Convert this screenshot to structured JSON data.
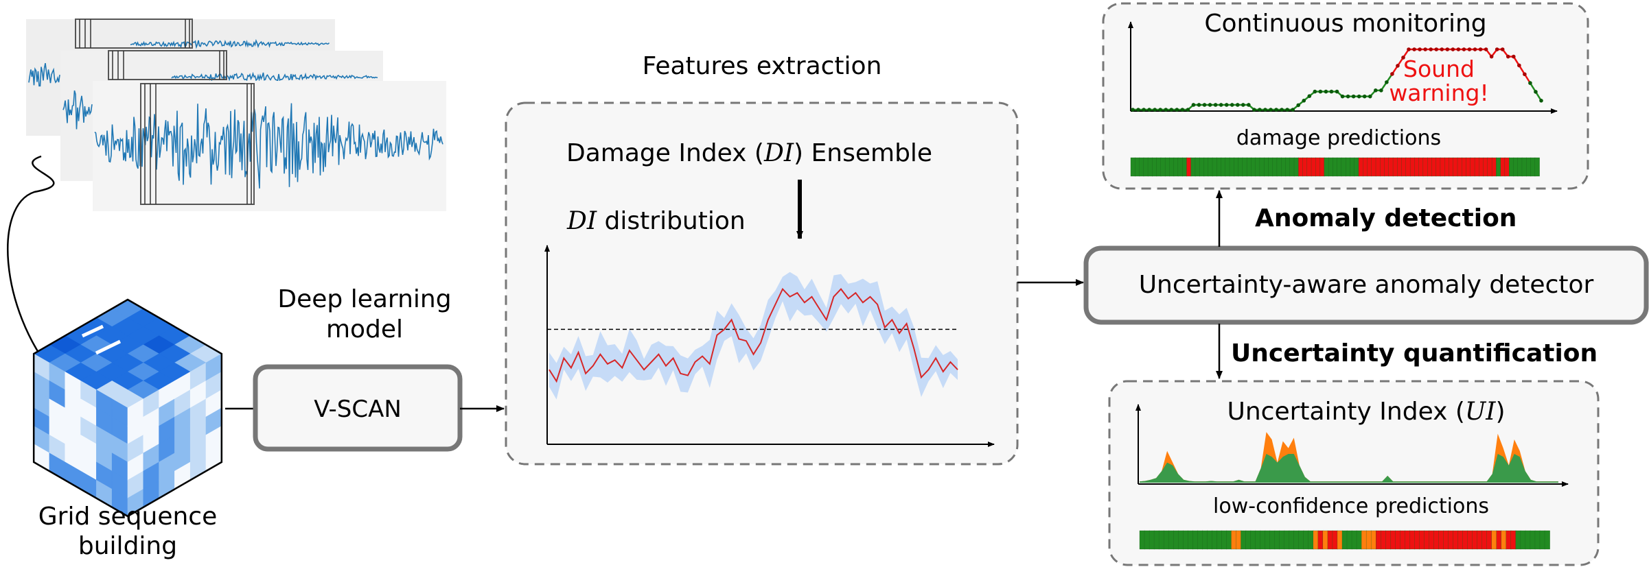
{
  "labels": {
    "features_extraction": "Features extraction",
    "deep_learning_line1": "Deep learning",
    "deep_learning_line2": "model",
    "vscan": "V-SCAN",
    "grid_line1": "Grid sequence",
    "grid_line2": "building",
    "ensemble_pre": "Damage Index (",
    "ensemble_di": "DI",
    "ensemble_post": ") Ensemble",
    "dist_di": "DI",
    "dist_post": " distribution",
    "anomaly_detection": "Anomaly detection",
    "detector": "Uncertainty-aware anomaly detector",
    "uncertainty_quantification": "Uncertainty quantification",
    "continuous_monitoring": "Continuous monitoring",
    "sound_warning_line1": "Sound",
    "sound_warning_line2": "warning!",
    "damage_predictions": "damage predictions",
    "ui_pre": "Uncertainty Index (",
    "ui_ui": "UI",
    "ui_post": ")",
    "low_confidence": "low-confidence predictions"
  },
  "colors": {
    "signal": "#1f77b4",
    "di_line": "#d62728",
    "di_band": "#c6dbf7",
    "green": "#228b22",
    "red": "#ee1111",
    "orange": "#ff7f0e",
    "box_border": "#777777",
    "box_fill": "#f7f7f7"
  },
  "chart_data": {
    "di_distribution": {
      "type": "line",
      "values": [
        0.36,
        0.3,
        0.42,
        0.37,
        0.45,
        0.34,
        0.38,
        0.44,
        0.39,
        0.41,
        0.37,
        0.46,
        0.41,
        0.36,
        0.4,
        0.44,
        0.38,
        0.42,
        0.34,
        0.33,
        0.4,
        0.43,
        0.39,
        0.54,
        0.57,
        0.62,
        0.52,
        0.51,
        0.44,
        0.5,
        0.62,
        0.7,
        0.78,
        0.74,
        0.76,
        0.71,
        0.74,
        0.68,
        0.62,
        0.74,
        0.78,
        0.73,
        0.76,
        0.71,
        0.74,
        0.7,
        0.58,
        0.62,
        0.55,
        0.6,
        0.47,
        0.32,
        0.36,
        0.42,
        0.35,
        0.4,
        0.36
      ],
      "threshold": 0.57
    },
    "continuous_monitoring": {
      "type": "line",
      "state": [
        "green",
        "green",
        "green",
        "green",
        "green",
        "green",
        "green",
        "green",
        "green",
        "green",
        "green",
        "green",
        "green",
        "green",
        "green",
        "green",
        "green",
        "green",
        "green",
        "green",
        "green",
        "green",
        "green",
        "green",
        "green",
        "green",
        "green",
        "green",
        "green",
        "green",
        "green",
        "green",
        "green",
        "green",
        "green",
        "green",
        "green",
        "green",
        "green",
        "green",
        "green",
        "red",
        "green",
        "green",
        "green",
        "green",
        "green",
        "green",
        "green",
        "green",
        "green",
        "green",
        "green",
        "green",
        "red",
        "red",
        "red",
        "red",
        "red",
        "red",
        "red",
        "red",
        "red",
        "red",
        "red",
        "red",
        "red",
        "red",
        "red",
        "red",
        "red",
        "red",
        "red",
        "red",
        "red",
        "red",
        "red",
        "red",
        "red",
        "red",
        "red",
        "red",
        "red",
        "red",
        "red",
        "red",
        "red",
        "red",
        "red",
        "red",
        "red",
        "red",
        "red",
        "red",
        "red",
        "red",
        "red",
        "red",
        "red",
        "red",
        "red",
        "red",
        "red",
        "red"
      ],
      "levels": [
        0,
        1,
        2,
        3,
        4
      ]
    },
    "damage_predictions": {
      "type": "heatmap",
      "cells": [
        "g",
        "g",
        "g",
        "g",
        "g",
        "g",
        "g",
        "g",
        "g",
        "g",
        "g",
        "g",
        "g",
        "r",
        "g",
        "g",
        "g",
        "g",
        "g",
        "g",
        "g",
        "g",
        "g",
        "g",
        "g",
        "g",
        "g",
        "g",
        "g",
        "g",
        "g",
        "g",
        "g",
        "g",
        "g",
        "g",
        "g",
        "g",
        "g",
        "r",
        "r",
        "r",
        "r",
        "r",
        "r",
        "g",
        "g",
        "g",
        "g",
        "g",
        "g",
        "g",
        "g",
        "r",
        "r",
        "r",
        "r",
        "r",
        "r",
        "r",
        "r",
        "r",
        "r",
        "r",
        "r",
        "r",
        "r",
        "r",
        "r",
        "r",
        "r",
        "r",
        "r",
        "r",
        "r",
        "r",
        "r",
        "r",
        "r",
        "r",
        "r",
        "r",
        "r",
        "r",
        "r",
        "g",
        "r",
        "r",
        "g",
        "g",
        "g",
        "g",
        "g",
        "g",
        "g"
      ]
    },
    "uncertainty_index": {
      "type": "area",
      "total": [
        0.02,
        0.03,
        0.05,
        0.08,
        0.2,
        0.55,
        0.35,
        0.15,
        0.05,
        0.03,
        0.02,
        0.02,
        0.02,
        0.03,
        0.02,
        0.02,
        0.02,
        0.02,
        0.05,
        0.02,
        0.02,
        0.02,
        0.25,
        0.88,
        0.75,
        0.35,
        0.72,
        0.6,
        0.78,
        0.3,
        0.1,
        0.02,
        0.02,
        0.02,
        0.02,
        0.02,
        0.02,
        0.02,
        0.02,
        0.02,
        0.02,
        0.02,
        0.02,
        0.02,
        0.02,
        0.12,
        0.02,
        0.02,
        0.02,
        0.02,
        0.02,
        0.02,
        0.02,
        0.02,
        0.02,
        0.02,
        0.02,
        0.02,
        0.02,
        0.02,
        0.02,
        0.02,
        0.02,
        0.02,
        0.15,
        0.85,
        0.6,
        0.3,
        0.75,
        0.55,
        0.2,
        0.05,
        0.02,
        0.02,
        0.02,
        0.02,
        0.02
      ],
      "green_part": [
        0.02,
        0.03,
        0.05,
        0.08,
        0.2,
        0.35,
        0.3,
        0.15,
        0.05,
        0.03,
        0.02,
        0.02,
        0.02,
        0.03,
        0.02,
        0.02,
        0.02,
        0.02,
        0.05,
        0.02,
        0.02,
        0.02,
        0.25,
        0.5,
        0.45,
        0.35,
        0.45,
        0.5,
        0.5,
        0.3,
        0.1,
        0.02,
        0.02,
        0.02,
        0.02,
        0.02,
        0.02,
        0.02,
        0.02,
        0.02,
        0.02,
        0.02,
        0.02,
        0.02,
        0.02,
        0.12,
        0.02,
        0.02,
        0.02,
        0.02,
        0.02,
        0.02,
        0.02,
        0.02,
        0.02,
        0.02,
        0.02,
        0.02,
        0.02,
        0.02,
        0.02,
        0.02,
        0.02,
        0.02,
        0.15,
        0.5,
        0.45,
        0.3,
        0.5,
        0.45,
        0.2,
        0.05,
        0.02,
        0.02,
        0.02,
        0.02,
        0.02
      ]
    },
    "low_confidence_predictions": {
      "type": "heatmap",
      "cells": [
        "g",
        "g",
        "g",
        "g",
        "g",
        "g",
        "g",
        "g",
        "g",
        "g",
        "g",
        "g",
        "g",
        "g",
        "g",
        "g",
        "g",
        "g",
        "g",
        "o",
        "o",
        "g",
        "g",
        "g",
        "g",
        "g",
        "g",
        "g",
        "g",
        "g",
        "g",
        "g",
        "g",
        "g",
        "g",
        "g",
        "o",
        "r",
        "o",
        "r",
        "r",
        "o",
        "g",
        "g",
        "g",
        "g",
        "o",
        "o",
        "o",
        "r",
        "r",
        "r",
        "r",
        "r",
        "r",
        "r",
        "r",
        "r",
        "r",
        "r",
        "r",
        "r",
        "r",
        "r",
        "r",
        "r",
        "r",
        "r",
        "r",
        "r",
        "r",
        "r",
        "r",
        "o",
        "r",
        "o",
        "r",
        "r",
        "g",
        "g",
        "g",
        "g",
        "g",
        "g",
        "g"
      ]
    },
    "grid_sequence": {
      "type": "heatmap",
      "top": [
        [
          3,
          4,
          4,
          4,
          2,
          1
        ],
        [
          3,
          4,
          4,
          5,
          4,
          2
        ],
        [
          4,
          4,
          4,
          3,
          4,
          4
        ],
        [
          4,
          3,
          4,
          4,
          3,
          4
        ],
        [
          5,
          4,
          3,
          4,
          4,
          3
        ],
        [
          4,
          3,
          4,
          4,
          1,
          1
        ]
      ],
      "left": [
        [
          1,
          2,
          0,
          1,
          3,
          3
        ],
        [
          2,
          3,
          0,
          0,
          3,
          3
        ],
        [
          2,
          0,
          0,
          1,
          2,
          2
        ],
        [
          3,
          0,
          0,
          0,
          2,
          3
        ],
        [
          2,
          1,
          0,
          0,
          3,
          3
        ],
        [
          0,
          3,
          3,
          3,
          2,
          3
        ]
      ],
      "right": [
        [
          0,
          1,
          0,
          0,
          1,
          2
        ],
        [
          0,
          0,
          2,
          1,
          0,
          1
        ],
        [
          1,
          0,
          3,
          2,
          1,
          0
        ],
        [
          0,
          2,
          3,
          2,
          1,
          2
        ],
        [
          1,
          3,
          2,
          2,
          1,
          0
        ],
        [
          2,
          3,
          2,
          0,
          1,
          0
        ]
      ]
    }
  }
}
